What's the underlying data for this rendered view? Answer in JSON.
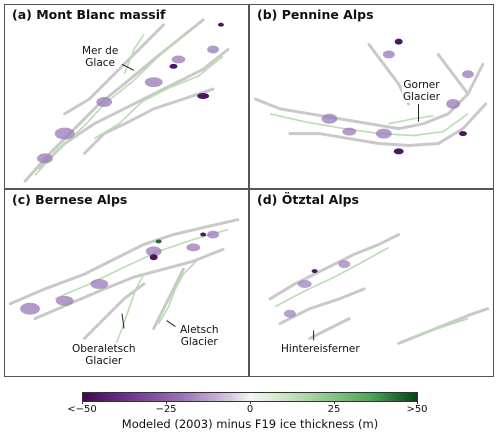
{
  "panels": [
    {
      "title": "(a) Mont Blanc massif",
      "labels": [
        "Mer de\nGlace"
      ]
    },
    {
      "title": "(b) Pennine Alps",
      "labels": [
        "Gorner\nGlacier"
      ]
    },
    {
      "title": "(c) Bernese Alps",
      "labels": [
        "Aletsch\nGlacier",
        "Oberaletsch\nGlacier"
      ]
    },
    {
      "title": "(d) Ötztal Alps",
      "labels": [
        "Hintereisferner"
      ]
    }
  ],
  "colorbar": {
    "title": "Modeled (2003) minus F19 ice thickness (m)",
    "ticks": [
      "<−50",
      "−25",
      "0",
      "25",
      ">50"
    ],
    "min": -50,
    "max": 50,
    "colors": {
      "negative": "#3f0a4f",
      "neutral": "#f6f4f7",
      "positive": "#00441b"
    }
  }
}
